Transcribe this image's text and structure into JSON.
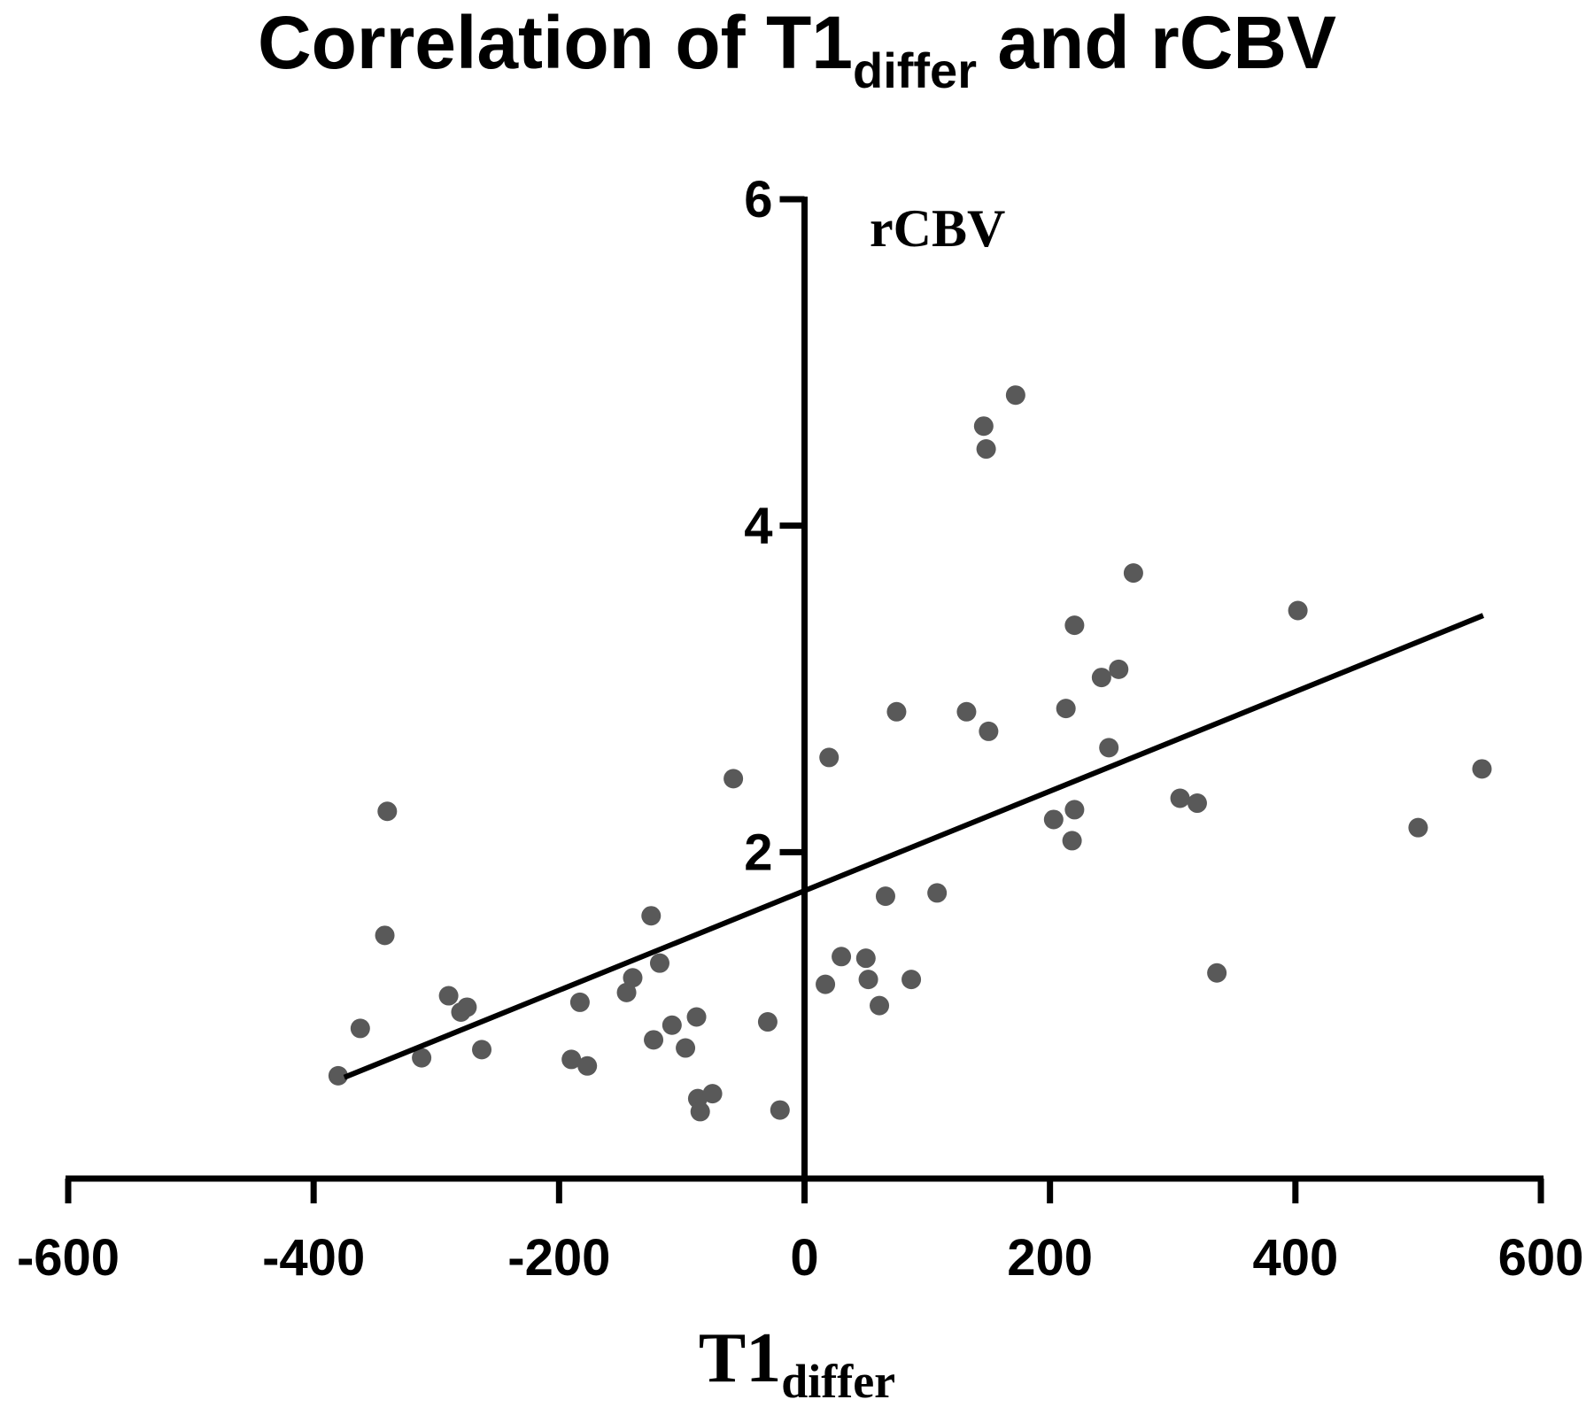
{
  "chart_data": {
    "type": "scatter",
    "title": {
      "main": "Correlation of T1",
      "sub": "differ",
      "tail": " and rCBV"
    },
    "xlabel": {
      "main": "T1",
      "sub": "differ"
    },
    "ylabel": "rCBV",
    "xlim": [
      -600,
      600
    ],
    "ylim": [
      0,
      6
    ],
    "x_ticks": [
      -600,
      -400,
      -200,
      0,
      200,
      400,
      600
    ],
    "y_ticks": [
      2,
      4,
      6
    ],
    "grid": false,
    "point_color": "#595959",
    "line_color": "#000000",
    "points": [
      {
        "x": -380,
        "y": 0.63
      },
      {
        "x": -362,
        "y": 0.92
      },
      {
        "x": -340,
        "y": 2.25
      },
      {
        "x": -342,
        "y": 1.49
      },
      {
        "x": -312,
        "y": 0.74
      },
      {
        "x": -290,
        "y": 1.12
      },
      {
        "x": -280,
        "y": 1.02
      },
      {
        "x": -275,
        "y": 1.05
      },
      {
        "x": -263,
        "y": 0.79
      },
      {
        "x": -190,
        "y": 0.73
      },
      {
        "x": -183,
        "y": 1.08
      },
      {
        "x": -177,
        "y": 0.69
      },
      {
        "x": -145,
        "y": 1.14
      },
      {
        "x": -140,
        "y": 1.23
      },
      {
        "x": -125,
        "y": 1.61
      },
      {
        "x": -123,
        "y": 0.85
      },
      {
        "x": -118,
        "y": 1.32
      },
      {
        "x": -108,
        "y": 0.94
      },
      {
        "x": -97,
        "y": 0.8
      },
      {
        "x": -88,
        "y": 0.99
      },
      {
        "x": -87,
        "y": 0.49
      },
      {
        "x": -85,
        "y": 0.41
      },
      {
        "x": -75,
        "y": 0.52
      },
      {
        "x": -58,
        "y": 2.45
      },
      {
        "x": -30,
        "y": 0.96
      },
      {
        "x": -20,
        "y": 0.42
      },
      {
        "x": 17,
        "y": 1.19
      },
      {
        "x": 20,
        "y": 2.58
      },
      {
        "x": 30,
        "y": 1.36
      },
      {
        "x": 50,
        "y": 1.35
      },
      {
        "x": 52,
        "y": 1.22
      },
      {
        "x": 61,
        "y": 1.06
      },
      {
        "x": 66,
        "y": 1.73
      },
      {
        "x": 75,
        "y": 2.86
      },
      {
        "x": 87,
        "y": 1.22
      },
      {
        "x": 108,
        "y": 1.75
      },
      {
        "x": 132,
        "y": 2.86
      },
      {
        "x": 146,
        "y": 4.61
      },
      {
        "x": 148,
        "y": 4.47
      },
      {
        "x": 150,
        "y": 2.74
      },
      {
        "x": 172,
        "y": 4.8
      },
      {
        "x": 203,
        "y": 2.2
      },
      {
        "x": 213,
        "y": 2.88
      },
      {
        "x": 218,
        "y": 2.07
      },
      {
        "x": 220,
        "y": 2.26
      },
      {
        "x": 220,
        "y": 3.39
      },
      {
        "x": 242,
        "y": 3.07
      },
      {
        "x": 248,
        "y": 2.64
      },
      {
        "x": 256,
        "y": 3.12
      },
      {
        "x": 268,
        "y": 3.71
      },
      {
        "x": 306,
        "y": 2.33
      },
      {
        "x": 320,
        "y": 2.3
      },
      {
        "x": 336,
        "y": 1.26
      },
      {
        "x": 402,
        "y": 3.48
      },
      {
        "x": 500,
        "y": 2.15
      },
      {
        "x": 552,
        "y": 2.51
      }
    ],
    "regression_line": {
      "x": [
        -375,
        553
      ],
      "y": [
        0.62,
        3.45
      ]
    }
  }
}
